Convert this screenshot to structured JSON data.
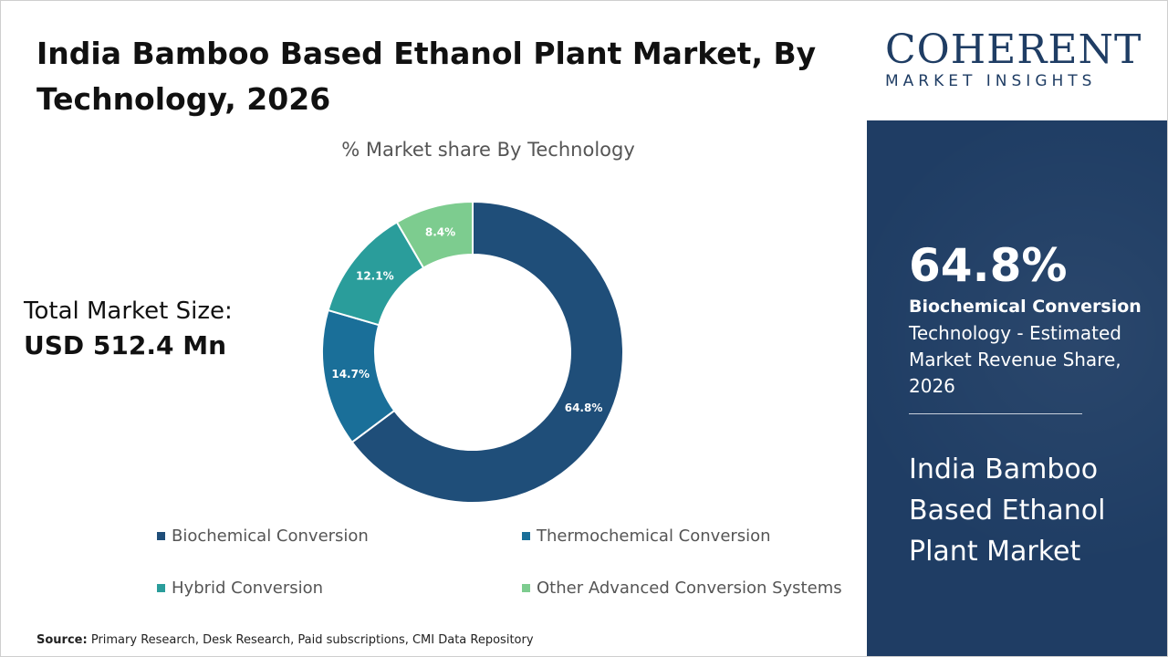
{
  "header": {
    "title": "India Bamboo Based Ethanol Plant Market, By Technology, 2026"
  },
  "summary": {
    "total_label": "Total Market Size:",
    "total_value": "USD 512.4 Mn"
  },
  "source": {
    "label": "Source:",
    "text": "Primary Research, Desk Research, Paid subscriptions, CMI Data Repository"
  },
  "logo": {
    "name": "COHERENT",
    "subtitle": "MARKET INSIGHTS"
  },
  "side_panel": {
    "highlight_value": "64.8%",
    "highlight_segment": "Biochemical Conversion",
    "highlight_description": "Technology - Estimated Market Revenue Share, 2026",
    "market_name": "India Bamboo Based Ethanol Plant Market"
  },
  "chart_data": {
    "type": "pie",
    "title": "% Market share By Technology",
    "categories": [
      "Biochemical Conversion",
      "Thermochemical Conversion",
      "Hybrid Conversion",
      "Other Advanced Conversion Systems"
    ],
    "values": [
      64.8,
      14.7,
      12.1,
      8.4
    ],
    "data_labels": [
      "64.8%",
      "14.7%",
      "12.1%",
      "8.4%"
    ],
    "colors": [
      "#1f4e79",
      "#1a6f99",
      "#2a9d9b",
      "#7dcc8f"
    ],
    "donut": true,
    "legend_position": "bottom"
  }
}
